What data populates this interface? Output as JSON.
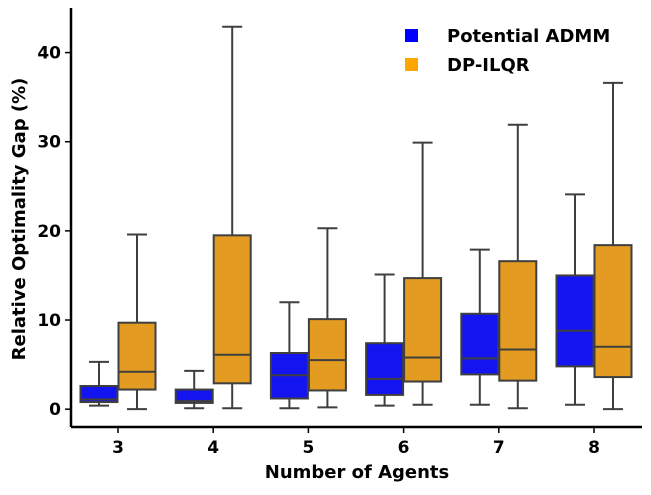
{
  "chart_data": {
    "type": "box",
    "title": "",
    "xlabel": "Number of Agents",
    "ylabel": "Relative Optimality Gap (%)",
    "ylim": [
      -2.0,
      45.0
    ],
    "yticks": [
      0,
      10,
      20,
      30,
      40
    ],
    "categories": [
      "3",
      "4",
      "5",
      "6",
      "7",
      "8"
    ],
    "legend_position": "top-right",
    "grid": false,
    "series": [
      {
        "name": "Potential ADMM",
        "color": "#1414f0",
        "legend_color": "#0000ff",
        "boxes": [
          {
            "whisker_low": 0.4,
            "q1": 0.8,
            "median": 1.1,
            "q3": 2.6,
            "whisker_high": 5.3
          },
          {
            "whisker_low": 0.1,
            "q1": 0.7,
            "median": 0.9,
            "q3": 2.2,
            "whisker_high": 4.3
          },
          {
            "whisker_low": 0.1,
            "q1": 1.2,
            "median": 3.8,
            "q3": 6.3,
            "whisker_high": 12.0
          },
          {
            "whisker_low": 0.4,
            "q1": 1.6,
            "median": 3.4,
            "q3": 7.4,
            "whisker_high": 15.1
          },
          {
            "whisker_low": 0.5,
            "q1": 3.9,
            "median": 5.7,
            "q3": 10.7,
            "whisker_high": 17.9
          },
          {
            "whisker_low": 0.5,
            "q1": 4.8,
            "median": 8.8,
            "q3": 15.0,
            "whisker_high": 24.1
          }
        ]
      },
      {
        "name": "DP-ILQR",
        "color": "#e39b21",
        "legend_color": "#ffa500",
        "boxes": [
          {
            "whisker_low": 0.0,
            "q1": 2.2,
            "median": 4.2,
            "q3": 9.7,
            "whisker_high": 19.6
          },
          {
            "whisker_low": 0.1,
            "q1": 2.9,
            "median": 6.1,
            "q3": 19.5,
            "whisker_high": 42.9
          },
          {
            "whisker_low": 0.2,
            "q1": 2.1,
            "median": 5.5,
            "q3": 10.1,
            "whisker_high": 20.3
          },
          {
            "whisker_low": 0.5,
            "q1": 3.1,
            "median": 5.8,
            "q3": 14.7,
            "whisker_high": 29.9
          },
          {
            "whisker_low": 0.1,
            "q1": 3.2,
            "median": 6.7,
            "q3": 16.6,
            "whisker_high": 31.9
          },
          {
            "whisker_low": 0.0,
            "q1": 3.6,
            "median": 7.0,
            "q3": 18.4,
            "whisker_high": 36.6
          }
        ]
      }
    ]
  }
}
